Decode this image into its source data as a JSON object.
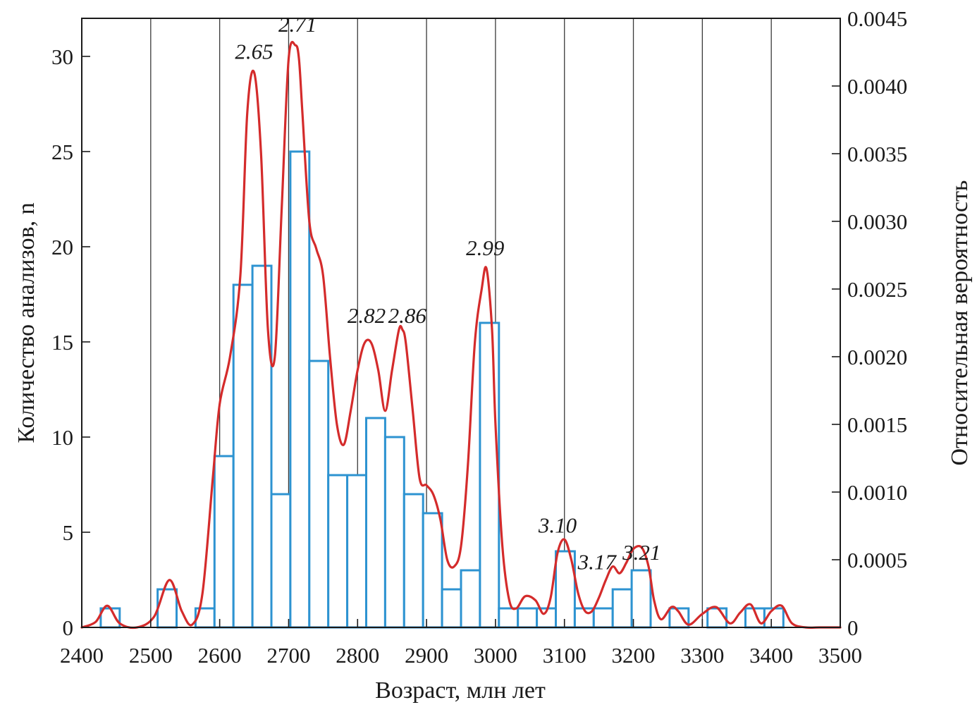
{
  "chart_data": {
    "type": "bar",
    "subtype": "histogram-with-probability-density",
    "xlabel": "Возраст, млн лет",
    "ylabel_left": "Количество анализов, n",
    "ylabel_right": "Относительная вероятность",
    "xlim": [
      2400,
      3500
    ],
    "ylim_left": [
      0,
      32
    ],
    "ylim_right": [
      0,
      0.0045
    ],
    "x_ticks": [
      "2400",
      "2500",
      "2600",
      "2700",
      "2800",
      "2900",
      "3000",
      "3100",
      "3200",
      "3300",
      "3400",
      "3500"
    ],
    "y_ticks_left": [
      "0",
      "5",
      "10",
      "15",
      "20",
      "25",
      "30"
    ],
    "y_ticks_right": [
      "0",
      "0.0005",
      "0.0010",
      "0.0015",
      "0.0020",
      "0.0025",
      "0.0030",
      "0.0035",
      "0.0040",
      "0.0045"
    ],
    "grid_vertical": true,
    "bin_width": 27.5,
    "bar_color": "#2d93d1",
    "curve_color": "#d42b2b",
    "histogram": {
      "name": "Количество анализов",
      "bins": [
        {
          "start": 2427.5,
          "count": 1
        },
        {
          "start": 2510,
          "count": 2
        },
        {
          "start": 2565,
          "count": 1
        },
        {
          "start": 2592.5,
          "count": 9
        },
        {
          "start": 2620,
          "count": 18
        },
        {
          "start": 2647.5,
          "count": 19
        },
        {
          "start": 2675,
          "count": 7
        },
        {
          "start": 2702.5,
          "count": 25
        },
        {
          "start": 2730,
          "count": 14
        },
        {
          "start": 2757.5,
          "count": 8
        },
        {
          "start": 2785,
          "count": 8
        },
        {
          "start": 2812.5,
          "count": 11
        },
        {
          "start": 2840,
          "count": 10
        },
        {
          "start": 2867.5,
          "count": 7
        },
        {
          "start": 2895,
          "count": 6
        },
        {
          "start": 2922.5,
          "count": 2
        },
        {
          "start": 2950,
          "count": 3
        },
        {
          "start": 2977.5,
          "count": 16
        },
        {
          "start": 3005,
          "count": 1
        },
        {
          "start": 3032.5,
          "count": 1
        },
        {
          "start": 3060,
          "count": 1
        },
        {
          "start": 3087.5,
          "count": 4
        },
        {
          "start": 3115,
          "count": 1
        },
        {
          "start": 3142.5,
          "count": 1
        },
        {
          "start": 3170,
          "count": 2
        },
        {
          "start": 3197.5,
          "count": 3
        },
        {
          "start": 3252.5,
          "count": 1
        },
        {
          "start": 3307.5,
          "count": 1
        },
        {
          "start": 3362.5,
          "count": 1
        },
        {
          "start": 3390,
          "count": 1
        }
      ]
    },
    "density_curve": {
      "name": "Относительная вероятность",
      "x": [
        2400,
        2420,
        2437,
        2455,
        2480,
        2505,
        2527,
        2545,
        2560,
        2575,
        2590,
        2600,
        2615,
        2630,
        2640,
        2650,
        2660,
        2670,
        2680,
        2690,
        2700,
        2710,
        2715,
        2720,
        2730,
        2740,
        2750,
        2760,
        2770,
        2780,
        2790,
        2800,
        2810,
        2820,
        2830,
        2840,
        2850,
        2860,
        2865,
        2870,
        2880,
        2890,
        2900,
        2910,
        2920,
        2930,
        2940,
        2950,
        2960,
        2970,
        2980,
        2987,
        2995,
        3000,
        3010,
        3020,
        3030,
        3043,
        3058,
        3070,
        3080,
        3090,
        3100,
        3110,
        3120,
        3130,
        3140,
        3150,
        3160,
        3170,
        3180,
        3190,
        3200,
        3212,
        3222,
        3230,
        3240,
        3255,
        3265,
        3280,
        3300,
        3320,
        3340,
        3355,
        3370,
        3385,
        3400,
        3415,
        3430,
        3450,
        3470,
        3500
      ],
      "y": [
        0,
        4e-05,
        0.00016,
        3e-05,
        0,
        8e-05,
        0.00035,
        0.00012,
        2e-05,
        0.00025,
        0.0011,
        0.00165,
        0.002,
        0.0026,
        0.0038,
        0.0041,
        0.0035,
        0.0022,
        0.002,
        0.0031,
        0.0042,
        0.0043,
        0.0042,
        0.0038,
        0.003,
        0.0028,
        0.0026,
        0.002,
        0.0015,
        0.00135,
        0.0016,
        0.0019,
        0.0021,
        0.0021,
        0.0019,
        0.0016,
        0.0019,
        0.0022,
        0.0022,
        0.0021,
        0.0016,
        0.0011,
        0.00105,
        0.00098,
        0.0008,
        0.0005,
        0.00045,
        0.0006,
        0.0012,
        0.0021,
        0.0025,
        0.00265,
        0.0022,
        0.0015,
        0.0006,
        0.0002,
        0.00014,
        0.00023,
        0.0002,
        0.0001,
        0.00022,
        0.00055,
        0.00065,
        0.0005,
        0.00025,
        0.00012,
        0.00012,
        0.00022,
        0.00035,
        0.00045,
        0.0004,
        0.00048,
        0.00058,
        0.00059,
        0.00045,
        0.0002,
        6e-05,
        0.00015,
        0.00012,
        2e-05,
        0.0001,
        0.00015,
        3e-05,
        0.00011,
        0.00017,
        3e-05,
        0.00012,
        0.00016,
        3e-05,
        0,
        0,
        0
      ]
    },
    "peak_labels": [
      {
        "text": "2.65",
        "x": 2650,
        "y": 0.0042
      },
      {
        "text": "2.71",
        "x": 2713,
        "y": 0.0044
      },
      {
        "text": "2.82",
        "x": 2813,
        "y": 0.00225
      },
      {
        "text": "2.86",
        "x": 2872,
        "y": 0.00225
      },
      {
        "text": "2.99",
        "x": 2985,
        "y": 0.00275
      },
      {
        "text": "3.10",
        "x": 3090,
        "y": 0.0007
      },
      {
        "text": "3.17",
        "x": 3147,
        "y": 0.00043
      },
      {
        "text": "3.21",
        "x": 3212,
        "y": 0.0005
      }
    ]
  }
}
